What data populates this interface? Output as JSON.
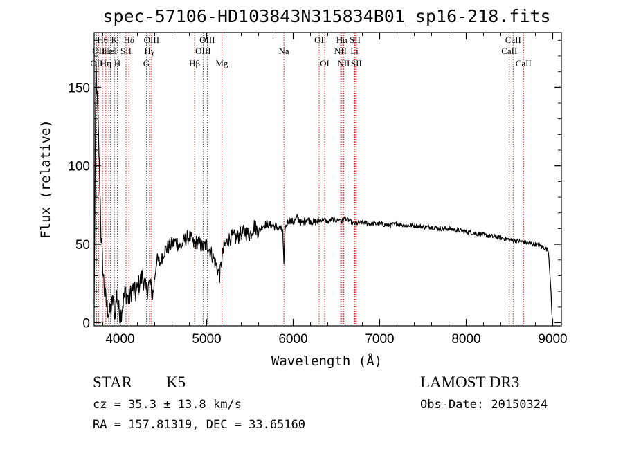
{
  "chart_data": {
    "type": "line",
    "title": "spec-57106-HD103843N315834B01_sp16-218.fits",
    "xlabel": "Wavelength (Å)",
    "ylabel": "Flux (relative)",
    "xlim": [
      3700,
      9100
    ],
    "ylim": [
      -2,
      185
    ],
    "x_ticks": [
      4000,
      5000,
      6000,
      7000,
      8000,
      9000
    ],
    "y_ticks": [
      0,
      50,
      100,
      150
    ],
    "series": [
      {
        "name": "flux",
        "x": [
          3700,
          3720,
          3740,
          3760,
          3780,
          3800,
          3820,
          3840,
          3860,
          3880,
          3900,
          3920,
          3940,
          3960,
          3980,
          4000,
          4030,
          4060,
          4100,
          4140,
          4180,
          4220,
          4260,
          4300,
          4340,
          4380,
          4420,
          4460,
          4500,
          4550,
          4600,
          4650,
          4700,
          4750,
          4800,
          4850,
          4900,
          4950,
          5000,
          5050,
          5100,
          5150,
          5180,
          5200,
          5250,
          5300,
          5350,
          5400,
          5450,
          5500,
          5550,
          5600,
          5650,
          5700,
          5750,
          5800,
          5850,
          5880,
          5893,
          5905,
          5950,
          6000,
          6050,
          6100,
          6150,
          6200,
          6250,
          6300,
          6350,
          6400,
          6450,
          6500,
          6550,
          6563,
          6580,
          6650,
          6700,
          6800,
          6900,
          7000,
          7100,
          7200,
          7300,
          7400,
          7500,
          7600,
          7700,
          7800,
          7900,
          8000,
          8100,
          8200,
          8300,
          8400,
          8500,
          8600,
          8700,
          8800,
          8900,
          8950,
          8980,
          8990,
          9000
        ],
        "y": [
          10,
          165,
          135,
          100,
          55,
          35,
          20,
          12,
          8,
          6,
          10,
          15,
          5,
          18,
          10,
          3,
          12,
          20,
          14,
          22,
          18,
          25,
          30,
          20,
          25,
          18,
          40,
          38,
          45,
          48,
          50,
          52,
          48,
          53,
          55,
          50,
          52,
          48,
          50,
          45,
          38,
          30,
          42,
          48,
          53,
          55,
          54,
          57,
          58,
          56,
          62,
          58,
          62,
          63,
          62,
          61,
          60,
          58,
          35,
          60,
          66,
          64,
          67,
          63,
          66,
          65,
          64,
          65,
          66,
          64,
          66,
          65,
          66,
          64,
          67,
          65,
          63,
          64,
          63,
          63,
          62,
          63,
          62,
          62,
          61,
          61,
          60,
          60,
          59,
          58,
          57,
          56,
          55,
          54,
          53,
          52,
          51,
          50,
          48,
          46,
          20,
          5,
          0
        ]
      }
    ],
    "line_markers": [
      {
        "wavelength": 3727,
        "label": "OII",
        "row": 3
      },
      {
        "wavelength": 3750,
        "label": "OII",
        "row": 2
      },
      {
        "wavelength": 3797,
        "label": "Hθ",
        "row": 1
      },
      {
        "wavelength": 3835,
        "label": "Hη",
        "row": 3
      },
      {
        "wavelength": 3869,
        "label": "HeI",
        "row": 2
      },
      {
        "wavelength": 3889,
        "label": "HeI",
        "row": 2
      },
      {
        "wavelength": 3934,
        "label": "K",
        "row": 1
      },
      {
        "wavelength": 3968,
        "label": "H",
        "row": 3
      },
      {
        "wavelength": 4068,
        "label": "SII",
        "row": 2
      },
      {
        "wavelength": 4102,
        "label": "Hδ",
        "row": 1
      },
      {
        "wavelength": 4304,
        "label": "G",
        "row": 3
      },
      {
        "wavelength": 4340,
        "label": "Hγ",
        "row": 2
      },
      {
        "wavelength": 4363,
        "label": "OIII",
        "row": 1
      },
      {
        "wavelength": 4861,
        "label": "Hβ",
        "row": 3
      },
      {
        "wavelength": 4959,
        "label": "OIII",
        "row": 2
      },
      {
        "wavelength": 5007,
        "label": "OIII",
        "row": 1
      },
      {
        "wavelength": 5175,
        "label": "Mg",
        "row": 3
      },
      {
        "wavelength": 5893,
        "label": "Na",
        "row": 2
      },
      {
        "wavelength": 6300,
        "label": "OI",
        "row": 1
      },
      {
        "wavelength": 6364,
        "label": "OI",
        "row": 3
      },
      {
        "wavelength": 6548,
        "label": "NII",
        "row": 2
      },
      {
        "wavelength": 6563,
        "label": "Hα",
        "row": 1
      },
      {
        "wavelength": 6583,
        "label": "NII",
        "row": 3
      },
      {
        "wavelength": 6708,
        "label": "Li",
        "row": 2
      },
      {
        "wavelength": 6716,
        "label": "SII",
        "row": 1
      },
      {
        "wavelength": 6731,
        "label": "SII",
        "row": 3
      },
      {
        "wavelength": 8498,
        "label": "CaII",
        "row": 2
      },
      {
        "wavelength": 8542,
        "label": "CaII",
        "row": 1
      },
      {
        "wavelength": 8662,
        "label": "CaII",
        "row": 3
      }
    ],
    "colors": {
      "spectrum": "#000000",
      "marker": "#c00000"
    }
  },
  "info": {
    "obj_class": "STAR",
    "subclass": "K5",
    "survey": "LAMOST DR3",
    "cz": "cz = 35.3 ± 13.8 km/s",
    "obs_date": "Obs-Date: 20150324",
    "coords": "RA = 157.81319, DEC =  33.65160"
  }
}
